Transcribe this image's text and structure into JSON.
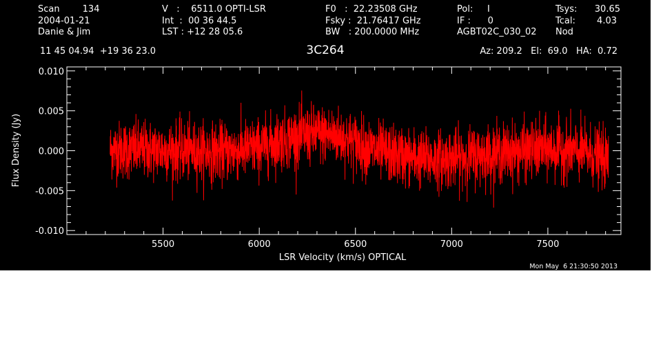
{
  "header": {
    "col1": [
      "Scan        134",
      "2004-01-21",
      "Danie & Jim"
    ],
    "col2": [
      "V   :    6511.0 OPTI-LSR",
      "Int  :  00 36 44.5",
      "LST : +12 28 05.6"
    ],
    "col3": [
      "F0   :  22.23508 GHz",
      "Fsky :  21.76417 GHz",
      "BW   : 200.0000 MHz"
    ],
    "col4": [
      "Pol:     I",
      "IF :      0",
      "AGBT02C_030_02"
    ],
    "col5_labels": [
      "Tsys:",
      "Tcal:",
      "Nod"
    ],
    "col5_values": [
      "30.65",
      "4.03",
      ""
    ],
    "coords": "11 45 04.94  +19 36 23.0",
    "source": "3C264",
    "azelha": "Az: 209.2   El:  69.0   HA:  0.72",
    "timestamp": "Mon May  6 21:30:50 2013"
  },
  "colors": {
    "background": "#000000",
    "axes": "#ffffff",
    "trace": "#ff0000"
  },
  "chart_data": {
    "type": "line",
    "title": "3C264",
    "xlabel": "LSR Velocity (km/s) OPTICAL",
    "ylabel": "Flux Density (Jy)",
    "xlim": [
      5000,
      7880
    ],
    "ylim": [
      -0.0105,
      0.0105
    ],
    "x_ticks": [
      5500,
      6000,
      6500,
      7000,
      7500
    ],
    "x_tick_labels": [
      "5500",
      "6000",
      "6500",
      "7000",
      "7500"
    ],
    "y_ticks": [
      -0.01,
      -0.005,
      0.0,
      0.005,
      0.01
    ],
    "y_tick_labels": [
      "-0.010",
      "-0.005",
      "0.000",
      "0.005",
      "0.010"
    ],
    "grid": false,
    "series": [
      {
        "color": "#ff0000",
        "x_range": [
          5225,
          7815
        ],
        "baseline": {
          "x": [
            5225,
            5400,
            5600,
            5800,
            6000,
            6100,
            6200,
            6300,
            6400,
            6500,
            6600,
            6700,
            6800,
            6900,
            7000,
            7100,
            7200,
            7300,
            7400,
            7500,
            7600,
            7700,
            7815
          ],
          "y": [
            0.0001,
            0.0001,
            0.0,
            -0.0002,
            0.0004,
            0.0012,
            0.0018,
            0.0021,
            0.0019,
            0.001,
            0.0,
            -0.0005,
            -0.0009,
            -0.0011,
            -0.001,
            -0.0007,
            -0.0004,
            -0.0002,
            0.0,
            0.0002,
            0.0001,
            -0.0003,
            -0.0012
          ]
        },
        "noise_rms": 0.0018
      }
    ]
  }
}
